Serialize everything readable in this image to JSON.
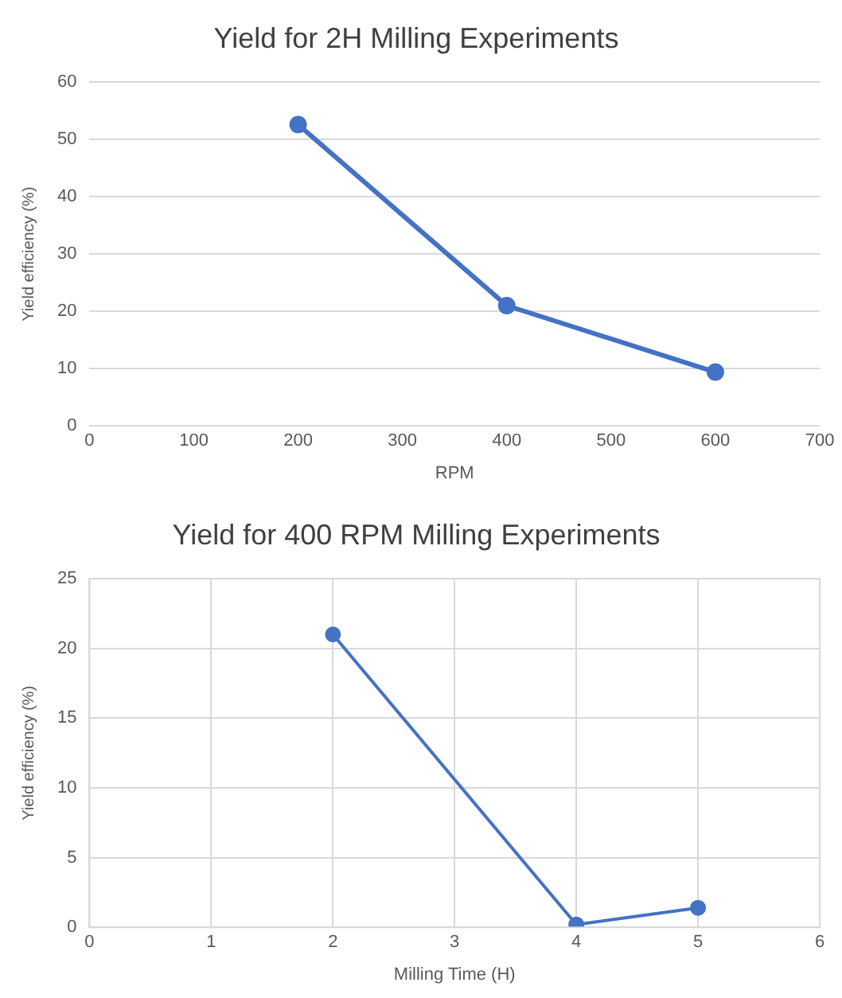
{
  "chart_data": [
    {
      "type": "line",
      "title": "Yield for 2H Milling Experiments",
      "xlabel": "RPM",
      "ylabel": "Yield efficiency (%)",
      "x": [
        200,
        400,
        600
      ],
      "series": [
        {
          "color": "#4472c4",
          "values": [
            52.6,
            21,
            9.4
          ]
        }
      ],
      "xlim": [
        0,
        700
      ],
      "xticks": [
        0,
        100,
        200,
        300,
        400,
        500,
        600,
        700
      ],
      "ylim": [
        0,
        60
      ],
      "yticks": [
        0,
        10,
        20,
        30,
        40,
        50,
        60
      ],
      "grid": "y",
      "marker": "circle",
      "line_style": "solid"
    },
    {
      "type": "line",
      "title": "Yield for 400 RPM Milling Experiments",
      "xlabel": "Milling Time (H)",
      "ylabel": "Yield efficiency (%)",
      "x": [
        2,
        4,
        5
      ],
      "series": [
        {
          "color": "#4472c4",
          "values": [
            21,
            0.2,
            1.4
          ]
        }
      ],
      "xlim": [
        0,
        6
      ],
      "xticks": [
        0,
        1,
        2,
        3,
        4,
        5,
        6
      ],
      "ylim": [
        0,
        25
      ],
      "yticks": [
        0,
        5,
        10,
        15,
        20,
        25
      ],
      "grid": true,
      "marker": "circle",
      "line_style": "solid"
    }
  ]
}
